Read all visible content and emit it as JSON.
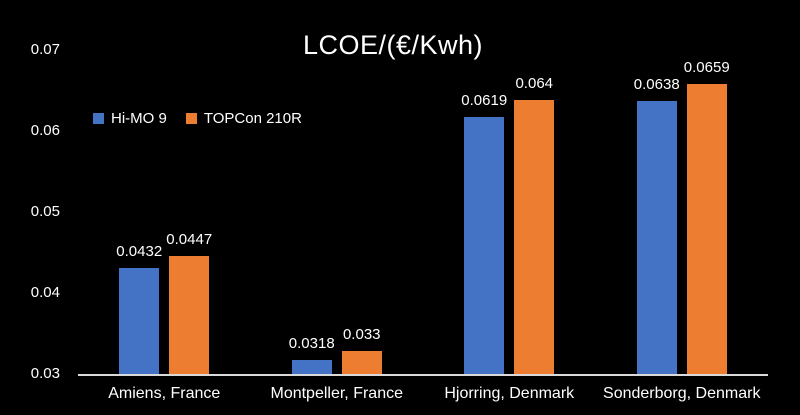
{
  "chart_data": {
    "type": "bar",
    "title": "LCOE/(€/Kwh)",
    "categories": [
      "Amiens, France",
      "Montpeller, France",
      "Hjorring, Denmark",
      "Sonderborg, Denmark"
    ],
    "series": [
      {
        "name": "Hi-MO 9",
        "color": "#4472C4",
        "values": [
          0.0432,
          0.0318,
          0.0619,
          0.0638
        ],
        "labels": [
          "0.0432",
          "0.0318",
          "0.0619",
          "0.0638"
        ]
      },
      {
        "name": "TOPCon 210R",
        "color": "#ED7D31",
        "values": [
          0.0447,
          0.033,
          0.064,
          0.0659
        ],
        "labels": [
          "0.0447",
          "0.033",
          "0.064",
          "0.0659"
        ]
      }
    ],
    "y_axis": {
      "min": 0.03,
      "max": 0.07,
      "tick_interval": 0.01,
      "tick_labels": [
        "0.03",
        "0.04",
        "0.05",
        "0.06",
        "0.07"
      ]
    },
    "legend_position": "top-left",
    "grid": false,
    "background_color": "#000000",
    "text_color": "#FFFFFF",
    "axis_line_color": "#D9D9D9"
  }
}
